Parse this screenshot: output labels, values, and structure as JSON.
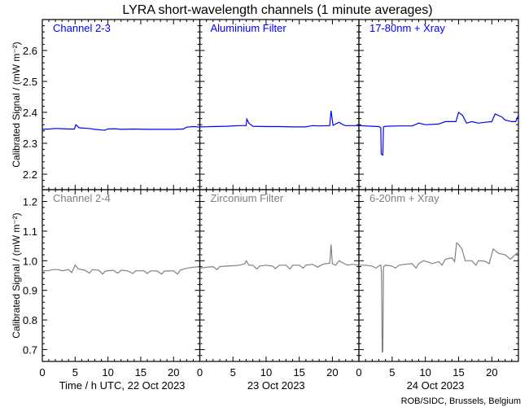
{
  "chart_data": {
    "type": "line",
    "title": "LYRA short-wavelength channels (1 minute averages)",
    "ylabel": "Calibrated Signal / (mW m⁻²)",
    "xlabel_prefix": "Time / h UTC, ",
    "days": [
      "22 Oct 2023",
      "23 Oct 2023",
      "24 Oct 2023"
    ],
    "xlim": [
      0,
      24
    ],
    "xticks": [
      0,
      5,
      10,
      15,
      20
    ],
    "credit": "ROB/SIDC, Brussels, Belgium",
    "colors": {
      "top": "#0000ff",
      "bottom": "#808080"
    },
    "rows": [
      {
        "ylim": [
          2.15,
          2.7
        ],
        "yticks": [
          "2.2",
          "2.3",
          "2.4",
          "2.5",
          "2.6"
        ],
        "color": "#0000ff",
        "panels": [
          {
            "name": "Channel 2-3",
            "points": [
              [
                0,
                2.345
              ],
              [
                1,
                2.346
              ],
              [
                2,
                2.348
              ],
              [
                3,
                2.347
              ],
              [
                4,
                2.346
              ],
              [
                4.9,
                2.346
              ],
              [
                5.1,
                2.36
              ],
              [
                5.6,
                2.35
              ],
              [
                7,
                2.348
              ],
              [
                8,
                2.345
              ],
              [
                9,
                2.343
              ],
              [
                9.5,
                2.342
              ],
              [
                10,
                2.346
              ],
              [
                11,
                2.347
              ],
              [
                12,
                2.345
              ],
              [
                14,
                2.346
              ],
              [
                16,
                2.345
              ],
              [
                18,
                2.345
              ],
              [
                20,
                2.345
              ],
              [
                21.5,
                2.346
              ],
              [
                22,
                2.352
              ],
              [
                23,
                2.354
              ],
              [
                24,
                2.352
              ]
            ]
          },
          {
            "name": "Aluminium Filter",
            "points": [
              [
                0,
                2.353
              ],
              [
                2,
                2.354
              ],
              [
                4,
                2.355
              ],
              [
                6,
                2.357
              ],
              [
                7,
                2.357
              ],
              [
                7.1,
                2.378
              ],
              [
                7.4,
                2.365
              ],
              [
                8,
                2.355
              ],
              [
                10,
                2.354
              ],
              [
                12,
                2.354
              ],
              [
                14,
                2.353
              ],
              [
                16,
                2.353
              ],
              [
                17,
                2.357
              ],
              [
                18,
                2.356
              ],
              [
                19.6,
                2.357
              ],
              [
                19.8,
                2.405
              ],
              [
                20.1,
                2.358
              ],
              [
                21,
                2.368
              ],
              [
                21.6,
                2.36
              ],
              [
                22,
                2.357
              ],
              [
                24,
                2.357
              ]
            ]
          },
          {
            "name": "17-80nm + Xray",
            "points": [
              [
                0,
                2.357
              ],
              [
                2,
                2.355
              ],
              [
                3,
                2.354
              ],
              [
                3.3,
                2.35
              ],
              [
                3.35,
                2.265
              ],
              [
                3.6,
                2.262
              ],
              [
                3.7,
                2.353
              ],
              [
                4,
                2.355
              ],
              [
                6,
                2.356
              ],
              [
                8,
                2.356
              ],
              [
                9,
                2.365
              ],
              [
                10,
                2.36
              ],
              [
                12,
                2.362
              ],
              [
                13,
                2.37
              ],
              [
                14,
                2.37
              ],
              [
                14.6,
                2.37
              ],
              [
                15,
                2.4
              ],
              [
                15.6,
                2.39
              ],
              [
                16.2,
                2.365
              ],
              [
                17,
                2.37
              ],
              [
                18,
                2.365
              ],
              [
                19,
                2.368
              ],
              [
                20,
                2.37
              ],
              [
                20.5,
                2.395
              ],
              [
                21.5,
                2.385
              ],
              [
                22,
                2.375
              ],
              [
                23,
                2.37
              ],
              [
                23.6,
                2.37
              ],
              [
                24,
                2.39
              ]
            ]
          }
        ]
      },
      {
        "ylim": [
          0.66,
          1.24
        ],
        "yticks": [
          "0.7",
          "0.8",
          "0.9",
          "1.0",
          "1.1",
          "1.2"
        ],
        "color": "#808080",
        "panels": [
          {
            "name": "Channel 2-4",
            "points": [
              [
                0,
                0.965
              ],
              [
                1,
                0.967
              ],
              [
                1.6,
                0.97
              ],
              [
                2.5,
                0.97
              ],
              [
                3,
                0.966
              ],
              [
                4,
                0.97
              ],
              [
                4.5,
                0.96
              ],
              [
                5,
                0.985
              ],
              [
                5.5,
                0.972
              ],
              [
                6.5,
                0.968
              ],
              [
                7.2,
                0.958
              ],
              [
                7.6,
                0.97
              ],
              [
                8.6,
                0.968
              ],
              [
                9.2,
                0.955
              ],
              [
                9.6,
                0.965
              ],
              [
                10.8,
                0.968
              ],
              [
                11.5,
                0.958
              ],
              [
                12,
                0.968
              ],
              [
                13,
                0.966
              ],
              [
                13.8,
                0.957
              ],
              [
                14.2,
                0.966
              ],
              [
                15.5,
                0.966
              ],
              [
                16,
                0.957
              ],
              [
                16.5,
                0.966
              ],
              [
                17.5,
                0.965
              ],
              [
                18.2,
                0.955
              ],
              [
                18.6,
                0.965
              ],
              [
                20,
                0.966
              ],
              [
                20.6,
                0.955
              ],
              [
                21,
                0.968
              ],
              [
                22,
                0.975
              ],
              [
                23,
                0.978
              ],
              [
                24,
                0.98
              ]
            ]
          },
          {
            "name": "Zirconium Filter",
            "points": [
              [
                0,
                0.975
              ],
              [
                1,
                0.978
              ],
              [
                2,
                0.98
              ],
              [
                2.6,
                0.97
              ],
              [
                3,
                0.98
              ],
              [
                4,
                0.982
              ],
              [
                5,
                0.983
              ],
              [
                6,
                0.985
              ],
              [
                6.8,
                0.99
              ],
              [
                7,
                1.0
              ],
              [
                7.4,
                0.985
              ],
              [
                8,
                0.985
              ],
              [
                8.6,
                0.972
              ],
              [
                9,
                0.982
              ],
              [
                10,
                0.985
              ],
              [
                11,
                0.982
              ],
              [
                11.4,
                0.973
              ],
              [
                12,
                0.985
              ],
              [
                13,
                0.985
              ],
              [
                13.6,
                0.972
              ],
              [
                14,
                0.985
              ],
              [
                15,
                0.985
              ],
              [
                15.6,
                0.975
              ],
              [
                16,
                0.985
              ],
              [
                17,
                0.988
              ],
              [
                17.8,
                0.978
              ],
              [
                18.5,
                0.988
              ],
              [
                19.6,
                0.992
              ],
              [
                19.8,
                1.055
              ],
              [
                20,
                0.99
              ],
              [
                20.5,
                0.985
              ],
              [
                21,
                1.0
              ],
              [
                21.8,
                0.99
              ],
              [
                22.3,
                0.985
              ],
              [
                23,
                0.988
              ],
              [
                24,
                0.985
              ]
            ]
          },
          {
            "name": "6-20nm + Xray",
            "points": [
              [
                0,
                0.985
              ],
              [
                1,
                0.985
              ],
              [
                2,
                0.982
              ],
              [
                2.6,
                0.975
              ],
              [
                3,
                0.983
              ],
              [
                3.3,
                0.985
              ],
              [
                3.4,
                0.96
              ],
              [
                3.5,
                0.69
              ],
              [
                3.6,
                0.695
              ],
              [
                3.7,
                0.98
              ],
              [
                4,
                0.985
              ],
              [
                5,
                0.982
              ],
              [
                5.5,
                0.975
              ],
              [
                6,
                0.985
              ],
              [
                7,
                0.988
              ],
              [
                8,
                0.99
              ],
              [
                8.6,
                0.975
              ],
              [
                9,
                0.99
              ],
              [
                9.7,
                1.0
              ],
              [
                10.5,
                0.995
              ],
              [
                11,
                0.99
              ],
              [
                12,
                0.997
              ],
              [
                12.5,
                0.985
              ],
              [
                13,
                1.005
              ],
              [
                14,
                1.01
              ],
              [
                14.4,
                0.997
              ],
              [
                14.7,
                1.06
              ],
              [
                15,
                1.055
              ],
              [
                15.5,
                1.04
              ],
              [
                16,
                1.0
              ],
              [
                17,
                1.0
              ],
              [
                17.6,
                0.985
              ],
              [
                18,
                1.0
              ],
              [
                19,
                0.998
              ],
              [
                19.6,
                0.99
              ],
              [
                20.2,
                1.04
              ],
              [
                21,
                1.025
              ],
              [
                22,
                1.02
              ],
              [
                22.8,
                1.005
              ],
              [
                23.5,
                1.02
              ],
              [
                24,
                1.03
              ]
            ]
          }
        ]
      }
    ]
  }
}
